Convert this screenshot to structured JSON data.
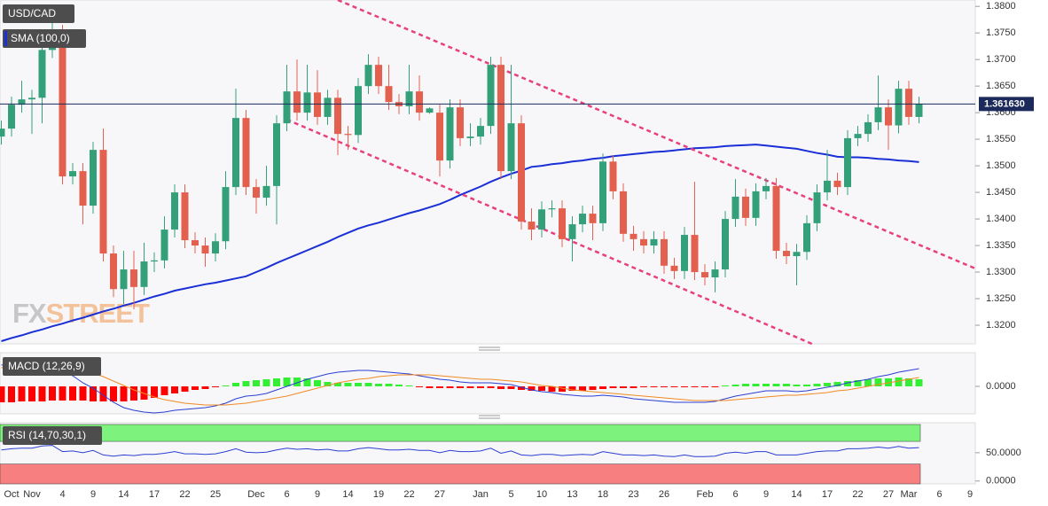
{
  "chart_data": [
    {
      "type": "candlestick",
      "title": "USD/CAD",
      "categories": [
        null,
        "Oct",
        null,
        "Nov",
        null,
        null,
        "4",
        null,
        null,
        "9",
        null,
        null,
        "14",
        null,
        null,
        "17",
        null,
        null,
        "22",
        null,
        null,
        "25",
        null,
        null,
        null,
        "Dec",
        null,
        null,
        "6",
        null,
        null,
        "9",
        null,
        null,
        "14",
        null,
        null,
        "19",
        null,
        null,
        "22",
        null,
        null,
        "27",
        null,
        null,
        null,
        "Jan",
        null,
        null,
        "5",
        null,
        null,
        "10",
        null,
        null,
        "13",
        null,
        null,
        "18",
        null,
        null,
        "23",
        null,
        null,
        "26",
        null,
        null,
        null,
        "Feb",
        null,
        null,
        "6",
        null,
        null,
        "9",
        null,
        null,
        "14",
        null,
        null,
        "17",
        null,
        null,
        "22",
        null,
        null,
        "27",
        null,
        "Mar",
        null,
        null,
        "6",
        null,
        null,
        "9"
      ],
      "open": [
        1.3555,
        1.357,
        1.3615,
        1.3625,
        1.3628,
        1.3718,
        1.375,
        1.348,
        1.349,
        1.3425,
        1.353,
        1.3335,
        1.3268,
        1.3305,
        1.3272,
        1.332,
        1.3322,
        1.338,
        1.345,
        1.336,
        1.335,
        1.3335,
        1.3358,
        1.346,
        1.359,
        1.346,
        1.344,
        1.3462,
        1.358,
        1.364,
        1.36,
        1.3638,
        1.3592,
        1.3628,
        1.356,
        1.3558,
        1.365,
        1.369,
        1.365,
        1.362,
        1.3612,
        1.364,
        1.36,
        1.36,
        1.351,
        1.361,
        1.3552,
        1.3555,
        1.3575,
        1.369,
        1.349,
        1.358,
        1.3395,
        1.338,
        1.3418,
        1.342,
        1.3362,
        1.339,
        1.341,
        1.3392,
        1.3508,
        1.3452,
        1.3372,
        1.3362,
        1.335,
        1.3362,
        1.3312,
        1.3302,
        1.337,
        1.33,
        1.329,
        1.3305,
        1.34,
        1.3442,
        1.3402,
        1.3452,
        1.3462,
        1.334,
        1.333,
        1.3338,
        1.3392,
        1.345,
        1.3472,
        1.346,
        1.3552,
        1.356,
        1.3582,
        1.361,
        1.3576,
        1.3645,
        1.3592,
        null,
        null,
        null,
        null,
        null
      ],
      "high": [
        1.3585,
        1.363,
        1.366,
        1.3643,
        1.3733,
        1.38,
        1.3765,
        1.3505,
        1.3505,
        1.3545,
        1.357,
        1.335,
        1.334,
        1.334,
        1.3355,
        1.3337,
        1.3405,
        1.3465,
        1.3465,
        1.3375,
        1.3365,
        1.3373,
        1.349,
        1.3645,
        1.3605,
        1.3475,
        1.35,
        1.3595,
        1.369,
        1.37,
        1.369,
        1.368,
        1.3643,
        1.3643,
        1.3575,
        1.3665,
        1.371,
        1.3705,
        1.369,
        1.3635,
        1.369,
        1.367,
        1.361,
        1.3615,
        1.3625,
        1.3625,
        1.358,
        1.359,
        1.3705,
        1.3705,
        1.369,
        1.3595,
        1.342,
        1.3433,
        1.3435,
        1.3435,
        1.3405,
        1.3425,
        1.3425,
        1.3523,
        1.352,
        1.3467,
        1.3387,
        1.3377,
        1.3377,
        1.3377,
        1.3327,
        1.3385,
        1.347,
        1.3315,
        1.332,
        1.3415,
        1.3475,
        1.3457,
        1.3467,
        1.3477,
        1.3477,
        1.3355,
        1.3353,
        1.3407,
        1.3465,
        1.353,
        1.3487,
        1.3567,
        1.3575,
        1.3597,
        1.367,
        1.3625,
        1.366,
        1.366,
        1.363,
        null,
        null,
        null,
        null,
        null
      ],
      "low": [
        1.354,
        1.3555,
        1.36,
        1.356,
        1.358,
        1.3703,
        1.3465,
        1.3465,
        1.339,
        1.341,
        1.332,
        1.3253,
        1.324,
        1.323,
        1.3257,
        1.33,
        1.3307,
        1.3365,
        1.3345,
        1.3335,
        1.331,
        1.332,
        1.3343,
        1.3445,
        1.3445,
        1.341,
        1.3425,
        1.339,
        1.3565,
        1.3585,
        1.3585,
        1.3577,
        1.3577,
        1.352,
        1.353,
        1.3543,
        1.3635,
        1.3635,
        1.3605,
        1.3597,
        1.3597,
        1.3585,
        1.3598,
        1.348,
        1.3495,
        1.3537,
        1.3537,
        1.354,
        1.356,
        1.3475,
        1.3475,
        1.338,
        1.336,
        1.3365,
        1.3403,
        1.3347,
        1.332,
        1.3375,
        1.336,
        1.3377,
        1.3437,
        1.3357,
        1.334,
        1.3335,
        1.3335,
        1.3297,
        1.3287,
        1.3287,
        1.3285,
        1.3275,
        1.3262,
        1.329,
        1.3385,
        1.3387,
        1.3387,
        1.3437,
        1.3325,
        1.3315,
        1.3275,
        1.3323,
        1.3377,
        1.3435,
        1.3445,
        1.3445,
        1.3537,
        1.3545,
        1.3567,
        1.353,
        1.3561,
        1.3577,
        1.358,
        null,
        null,
        null,
        null,
        null
      ],
      "close": [
        1.357,
        1.3615,
        1.3625,
        1.3628,
        1.3718,
        1.375,
        1.348,
        1.349,
        1.3425,
        1.353,
        1.3335,
        1.3268,
        1.3305,
        1.3272,
        1.332,
        1.3322,
        1.338,
        1.345,
        1.336,
        1.335,
        1.3335,
        1.3358,
        1.346,
        1.359,
        1.346,
        1.344,
        1.3462,
        1.358,
        1.364,
        1.36,
        1.3638,
        1.3592,
        1.3628,
        1.356,
        1.3558,
        1.365,
        1.369,
        1.365,
        1.362,
        1.3612,
        1.364,
        1.36,
        1.3608,
        1.351,
        1.361,
        1.3552,
        1.3555,
        1.3575,
        1.369,
        1.349,
        1.358,
        1.3395,
        1.338,
        1.3418,
        1.342,
        1.3362,
        1.339,
        1.341,
        1.3392,
        1.3508,
        1.3452,
        1.3372,
        1.3362,
        1.335,
        1.3362,
        1.3312,
        1.3302,
        1.337,
        1.33,
        1.329,
        1.3305,
        1.34,
        1.3442,
        1.3402,
        1.3452,
        1.3462,
        1.334,
        1.333,
        1.3338,
        1.3392,
        1.345,
        1.3472,
        1.346,
        1.3552,
        1.356,
        1.3582,
        1.361,
        1.3576,
        1.3645,
        1.3592,
        1.36163,
        null,
        null,
        null,
        null,
        null
      ],
      "up_color": "#33a07a",
      "down_color": "#e4604e",
      "series": [
        {
          "name": "SMA (100,0)",
          "color": "#1a2fd6",
          "values": [
            1.317,
            1.3176,
            1.3181,
            1.3187,
            1.3192,
            1.3198,
            1.3203,
            1.3209,
            1.3214,
            1.322,
            1.3226,
            1.3231,
            1.3237,
            1.3242,
            1.3248,
            1.3254,
            1.3259,
            1.3265,
            1.3269,
            1.3273,
            1.3277,
            1.328,
            1.3284,
            1.3288,
            1.3292,
            1.33,
            1.3308,
            1.3317,
            1.3325,
            1.3333,
            1.3341,
            1.3349,
            1.3357,
            1.3366,
            1.3374,
            1.3382,
            1.3388,
            1.3393,
            1.3399,
            1.3405,
            1.3411,
            1.3416,
            1.3422,
            1.3428,
            1.3436,
            1.3445,
            1.3453,
            1.3461,
            1.347,
            1.3478,
            1.3485,
            1.3491,
            1.3498,
            1.35,
            1.3503,
            1.3505,
            1.3508,
            1.351,
            1.3513,
            1.3515,
            1.3518,
            1.352,
            1.3522,
            1.3524,
            1.3526,
            1.3527,
            1.3529,
            1.3531,
            1.3533,
            1.3534,
            1.3535,
            1.3537,
            1.3538,
            1.3539,
            1.354,
            1.3538,
            1.3536,
            1.3534,
            1.3532,
            1.3528,
            1.3524,
            1.3521,
            1.3517,
            1.3516,
            1.3516,
            1.3515,
            1.3513,
            1.3512,
            1.351,
            1.3509,
            1.3507,
            null,
            null,
            null,
            null,
            null
          ]
        }
      ],
      "trendlines": [
        {
          "color": "#e8407d",
          "x": [
            33,
            95.5
          ],
          "y": [
            1.3812,
            1.3307
          ]
        },
        {
          "color": "#e8407d",
          "x": [
            28,
            79.5
          ],
          "y": [
            1.3587,
            1.3165
          ]
        }
      ],
      "last_price": {
        "value": 1.36163,
        "label": "1.361630"
      },
      "watermark": [
        "FX",
        "STREET"
      ],
      "ylim": [
        1.3165,
        1.3812
      ],
      "yticks": [
        {
          "value": 1.38,
          "label": "1.3800"
        },
        {
          "value": 1.375,
          "label": "1.3750"
        },
        {
          "value": 1.37,
          "label": "1.3700"
        },
        {
          "value": 1.365,
          "label": "1.3650"
        },
        {
          "value": 1.36,
          "label": "1.3600"
        },
        {
          "value": 1.355,
          "label": "1.3550"
        },
        {
          "value": 1.35,
          "label": "1.3500"
        },
        {
          "value": 1.345,
          "label": "1.3450"
        },
        {
          "value": 1.34,
          "label": "1.3400"
        },
        {
          "value": 1.335,
          "label": "1.3350"
        },
        {
          "value": 1.33,
          "label": "1.3300"
        },
        {
          "value": 1.325,
          "label": "1.3250"
        },
        {
          "value": 1.32,
          "label": "1.3200"
        }
      ]
    },
    {
      "type": "macd",
      "title": "MACD (12,26,9)",
      "histogram": [
        -0.0018,
        -0.0018,
        -0.0017,
        -0.0017,
        -0.0017,
        -0.0016,
        -0.0016,
        -0.0016,
        -0.0016,
        -0.0017,
        -0.0017,
        -0.0017,
        -0.0017,
        -0.0016,
        -0.0015,
        -0.0013,
        -0.001,
        -0.0008,
        -0.0006,
        -0.0004,
        -0.0003,
        -0.0001,
        0.0001,
        0.0004,
        0.0006,
        0.0007,
        0.0008,
        0.0009,
        0.001,
        0.001,
        0.0009,
        0.0007,
        0.0005,
        0.0004,
        0.0004,
        0.0004,
        0.0004,
        0.0003,
        0.0003,
        0.0002,
        0.0001,
        -0.0001,
        -0.0002,
        -0.0002,
        -0.0002,
        -0.0002,
        -0.0002,
        -0.0002,
        -0.0002,
        -0.0003,
        -0.0003,
        -0.0004,
        -0.0005,
        -0.0005,
        -0.0006,
        -0.0006,
        -0.0005,
        -0.0005,
        -0.0004,
        -0.0003,
        -0.0002,
        -0.0002,
        -0.0002,
        -0.0001,
        -0.0001,
        -0.0001,
        -0.0001,
        -0.0001,
        -0.0001,
        -0.0001,
        -0.0001,
        0.0001,
        0.0002,
        0.0003,
        0.0003,
        0.0003,
        0.0003,
        0.0003,
        0.0002,
        0.0002,
        0.0003,
        0.0004,
        0.0005,
        0.0006,
        0.0007,
        0.0008,
        0.0009,
        0.0009,
        0.001,
        0.0009,
        0.0008,
        null,
        null,
        null,
        null,
        null
      ],
      "up_color": "#33ee33",
      "down_color": "#ff0000",
      "series": [
        {
          "color": "#2b3fd1",
          "values": [
            0.0024,
            0.0026,
            0.0028,
            0.0029,
            0.0028,
            0.0026,
            0.0018,
            0.0012,
            0.0004,
            -0.0002,
            -0.001,
            -0.0018,
            -0.0024,
            -0.0027,
            -0.0029,
            -0.003,
            -0.0029,
            -0.0027,
            -0.0026,
            -0.0025,
            -0.0024,
            -0.0022,
            -0.0019,
            -0.0014,
            -0.0011,
            -0.001,
            -0.0008,
            -0.0004,
            0,
            0.0004,
            0.0008,
            0.0011,
            0.0014,
            0.0016,
            0.0017,
            0.0018,
            0.0018,
            0.0017,
            0.0016,
            0.0015,
            0.0014,
            0.0012,
            0.001,
            0.0008,
            0.0007,
            0.0005,
            0.0004,
            0.0004,
            0.0004,
            0.0003,
            0.0002,
            -0.0001,
            -0.0004,
            -0.0006,
            -0.0007,
            -0.0009,
            -0.001,
            -0.0011,
            -0.0011,
            -0.001,
            -0.0011,
            -0.0012,
            -0.0014,
            -0.0015,
            -0.0016,
            -0.0017,
            -0.0018,
            -0.0018,
            -0.0018,
            -0.0018,
            -0.0017,
            -0.0014,
            -0.0011,
            -0.0009,
            -0.0007,
            -0.0005,
            -0.0005,
            -0.0005,
            -0.0006,
            -0.0005,
            -0.0003,
            -0.0001,
            0.0001,
            0.0004,
            0.0006,
            0.0008,
            0.0011,
            0.0013,
            0.0016,
            0.0018,
            0.002,
            null,
            null,
            null,
            null,
            null
          ]
        },
        {
          "color": "#f08a24",
          "values": [
            0.0021,
            0.0022,
            0.0023,
            0.0024,
            0.0024,
            0.0024,
            0.0023,
            0.0021,
            0.0018,
            0.0015,
            0.0011,
            0.0006,
            0.0001,
            -0.0004,
            -0.0008,
            -0.0012,
            -0.0015,
            -0.0017,
            -0.0019,
            -0.002,
            -0.0021,
            -0.0021,
            -0.0021,
            -0.002,
            -0.0019,
            -0.0017,
            -0.0015,
            -0.0013,
            -0.0011,
            -0.0008,
            -0.0005,
            -0.0002,
            0.0001,
            0.0004,
            0.0006,
            0.0008,
            0.0009,
            0.0011,
            0.0012,
            0.0013,
            0.0013,
            0.0013,
            0.0013,
            0.0012,
            0.0011,
            0.001,
            0.0009,
            0.0008,
            0.0008,
            0.0007,
            0.0006,
            0.0005,
            0.0003,
            0.0001,
            0,
            -0.0002,
            -0.0004,
            -0.0005,
            -0.0006,
            -0.0007,
            -0.0008,
            -0.0009,
            -0.001,
            -0.0011,
            -0.0012,
            -0.0013,
            -0.0014,
            -0.0015,
            -0.0016,
            -0.0016,
            -0.0016,
            -0.0016,
            -0.0015,
            -0.0014,
            -0.0013,
            -0.0012,
            -0.0011,
            -0.001,
            -0.001,
            -0.0009,
            -0.0008,
            -0.0007,
            -0.0005,
            -0.0004,
            -0.0002,
            0,
            0.0002,
            0.0004,
            0.0006,
            0.0008,
            0.001,
            null,
            null,
            null,
            null,
            null
          ]
        }
      ],
      "ylim": [
        -0.0031,
        0.0038
      ],
      "yticks": [
        {
          "value": 0,
          "label": "0.0000"
        }
      ]
    },
    {
      "type": "rsi",
      "title": "RSI (14,70,30,1)",
      "overbought": 70,
      "oversold": 30,
      "overbought_color": "#7df27d",
      "oversold_color": "#f87f7f",
      "series": [
        {
          "color": "#2b3fd1",
          "values": [
            55,
            57,
            58,
            58,
            62,
            63,
            52,
            53,
            50,
            54,
            46,
            44,
            46,
            45,
            47,
            47,
            49,
            52,
            48,
            48,
            47,
            48,
            52,
            57,
            51,
            50,
            51,
            55,
            58,
            56,
            57,
            55,
            56,
            53,
            53,
            57,
            59,
            57,
            55,
            55,
            56,
            54,
            54,
            50,
            54,
            52,
            52,
            53,
            58,
            49,
            53,
            46,
            45,
            47,
            47,
            45,
            46,
            47,
            46,
            52,
            49,
            46,
            46,
            45,
            46,
            44,
            43,
            46,
            43,
            43,
            44,
            49,
            51,
            49,
            52,
            52,
            46,
            46,
            46,
            49,
            52,
            53,
            53,
            57,
            57,
            58,
            60,
            58,
            61,
            58,
            59,
            null,
            null,
            null,
            null,
            null
          ]
        }
      ],
      "ylim": [
        -5,
        103
      ],
      "yticks": [
        {
          "value": 50,
          "label": "50.0000"
        },
        {
          "value": 0,
          "label": "0.0000"
        }
      ]
    }
  ]
}
